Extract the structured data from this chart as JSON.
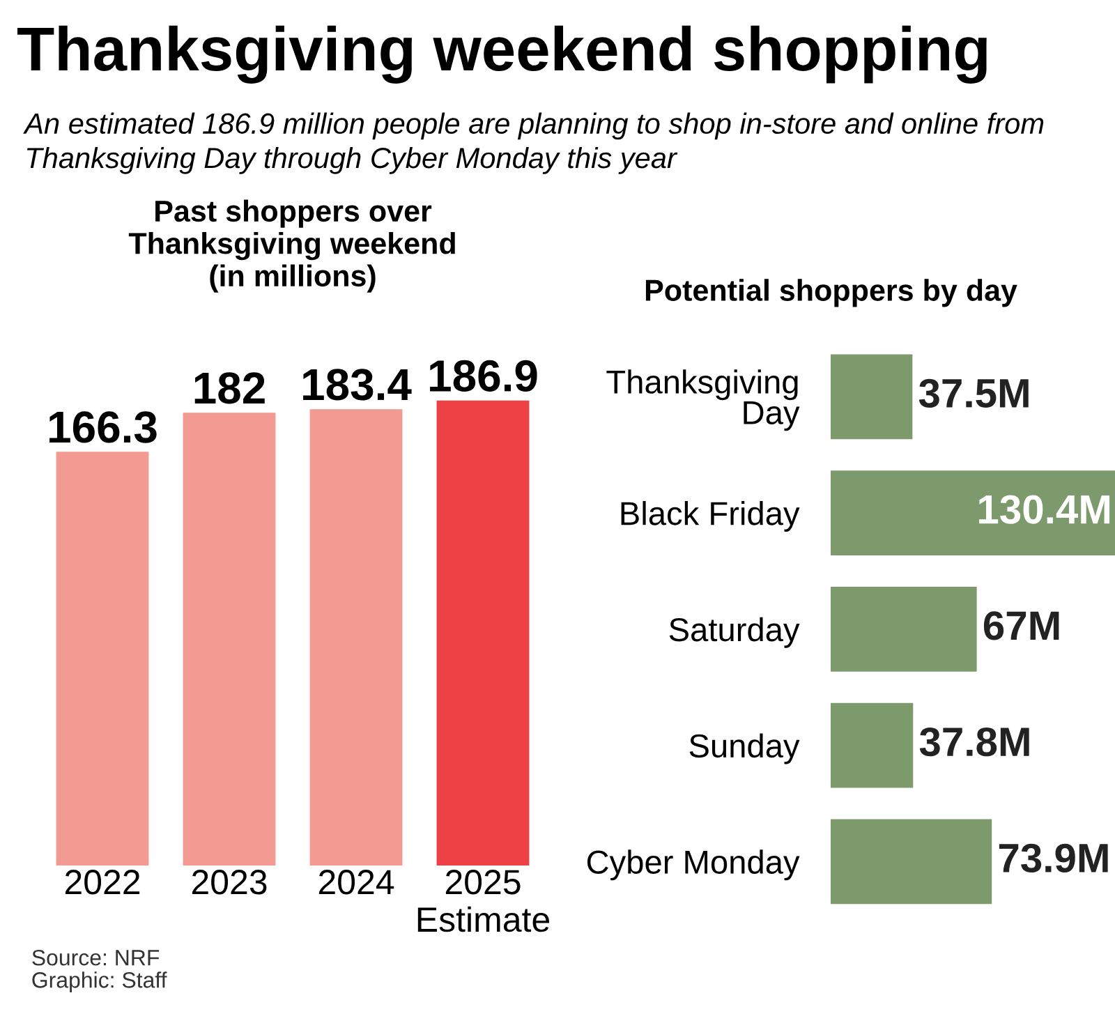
{
  "chart_data": [
    {
      "type": "other",
      "title": "Thanksgiving weekend shopping",
      "subtitle": "An estimated 186.9 million people are planning to shop in-store and online from Thanksgiving Day through Cyber Monday this year"
    },
    {
      "type": "bar",
      "title": "Past shoppers over\nThanksgiving weekend\n(in millions)",
      "categories": [
        "2022",
        "2023",
        "2024",
        "2025\nEstimate"
      ],
      "values": [
        166.3,
        182,
        183.4,
        186.9
      ],
      "colors": [
        "#f39a93",
        "#f39a93",
        "#f39a93",
        "#ee4145"
      ],
      "data_labels": true,
      "tick_labels": "x",
      "grid": false,
      "annotations": [
        "Source: NRF\nGraphic: Staff"
      ]
    },
    {
      "type": "bar",
      "orientation": "horizontal",
      "title": "Potential shoppers by day",
      "categories": [
        "Thanksgiving\nDay",
        "Black Friday",
        "Saturday",
        "Sunday",
        "Cyber Monday"
      ],
      "values": [
        37.5,
        130.4,
        67,
        37.8,
        73.9
      ],
      "color": "#7d9a6c",
      "value_labels": [
        "37.5M",
        "130.4M",
        "67M",
        "37.8M",
        "73.9M"
      ],
      "tick_labels": "y",
      "grid": false
    }
  ]
}
